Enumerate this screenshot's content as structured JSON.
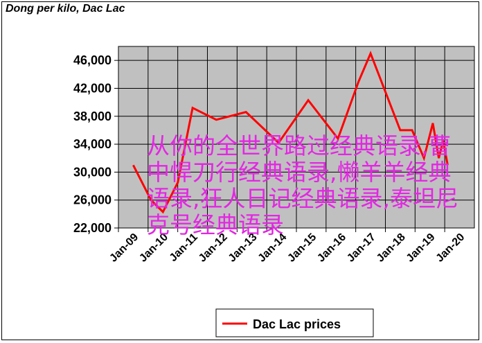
{
  "chart_data": {
    "type": "line",
    "title": "Dong per kilo, Dac Lac",
    "categories": [
      "Jan-09",
      "Jan-10",
      "Jan-11",
      "Jan-12",
      "Jan-13",
      "Jan-14",
      "Jan-15",
      "Jan-16",
      "Jan-17",
      "Jan-18",
      "Jan-19",
      "Jan-20"
    ],
    "y_tick_labels": [
      "22,000",
      "26,000",
      "30,000",
      "34,000",
      "38,000",
      "42,000",
      "46,000"
    ],
    "ylim": [
      22000,
      48000
    ],
    "grid": "horizontal",
    "legend_position": "bottom",
    "series": [
      {
        "name": "Dac Lac prices",
        "color": "#ff0000",
        "x": [
          2009.0,
          2009.6,
          2010.0,
          2010.5,
          2011.0,
          2011.8,
          2012.8,
          2013.9,
          2014.9,
          2015.9,
          2016.6,
          2017.0,
          2018.0,
          2018.4,
          2018.8,
          2019.1,
          2019.3,
          2019.45,
          2019.6
        ],
        "y": [
          31000,
          26000,
          24300,
          28500,
          39200,
          37500,
          38600,
          34200,
          40300,
          34800,
          43000,
          47000,
          36000,
          36000,
          32000,
          37000,
          32000,
          34500,
          31000
        ]
      }
    ]
  },
  "overlay_text": "从你的全世界路过经典语录,曹中悍刀行经典语录,懒羊羊经典语录,狂人日记经典语录,泰坦尼克号经典语录"
}
